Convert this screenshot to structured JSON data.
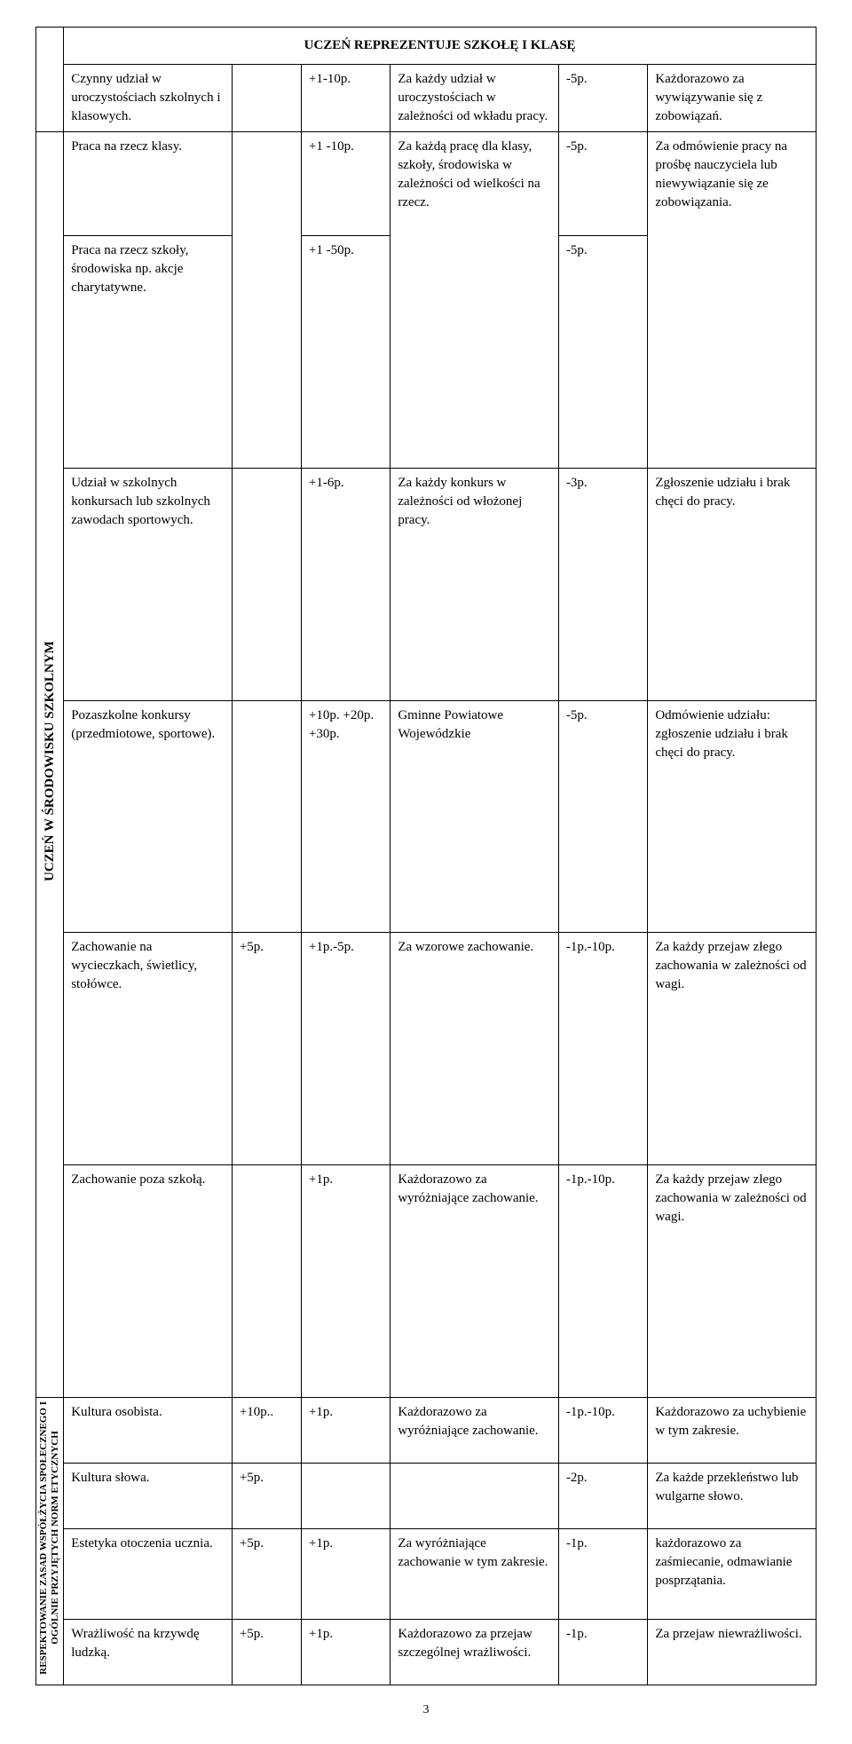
{
  "header": "UCZEŃ REPREZENTUJE SZKOŁĘ I KLASĘ",
  "sideLabel1": "UCZEŃ W ŚRODOWISKU SZKOLNYM",
  "sideLabel2a": "RESPEKTOWANIE ZASAD WSPÓŁŻYCIA SPOŁECZNEGO I",
  "sideLabel2b": "OGÓLNIE PRZYJĘTYCH NORM ETYCZNYCH",
  "pageNumber": "3",
  "rows": {
    "r1": {
      "a": "Czynny udział w uroczystościach szkolnych i klasowych.",
      "b": "",
      "c": "+1-10p.",
      "d": "Za każdy udział w uroczystościach w zależności od wkładu pracy.",
      "e": "-5p.",
      "f": "Każdorazowo za wywiązywanie się z zobowiązań."
    },
    "r2": {
      "a": "Praca na rzecz klasy.",
      "b": "",
      "c": "+1 -10p.",
      "d": "Za każdą pracę dla klasy, szkoły, środowiska w zależności od wielkości na rzecz.",
      "e": "-5p.",
      "f": "Za odmówienie pracy na prośbę nauczyciela lub niewywiązanie się ze zobowiązania."
    },
    "r3": {
      "a": "Praca na rzecz szkoły, środowiska np. akcje charytatywne.",
      "b": "",
      "c": "+1 -50p.",
      "e": "-5p."
    },
    "r4": {
      "a": "Udział w szkolnych konkursach lub szkolnych zawodach sportowych.",
      "b": "",
      "c": "+1-6p.",
      "d": "Za każdy konkurs w zależności od włożonej pracy.",
      "e": "-3p.",
      "f": "Zgłoszenie udziału i brak chęci do pracy."
    },
    "r5": {
      "a": "Pozaszkolne konkursy (przedmiotowe, sportowe).",
      "b": "",
      "c": "+10p. +20p. +30p.",
      "d": "Gminne Powiatowe Wojewódzkie",
      "e": "-5p.",
      "f": "Odmówienie udziału: zgłoszenie udziału i brak chęci do pracy."
    },
    "r6": {
      "a": "Zachowanie na wycieczkach, świetlicy, stołówce.",
      "b": "+5p.",
      "c": "+1p.-5p.",
      "d": "Za wzorowe zachowanie.",
      "e": "-1p.-10p.",
      "f": "Za każdy przejaw złego zachowania w zależności od wagi."
    },
    "r7": {
      "a": "Zachowanie poza szkołą.",
      "b": "",
      "c": "+1p.",
      "d": "Każdorazowo za wyróżniające zachowanie.",
      "e": "-1p.-10p.",
      "f": "Za każdy przejaw złego zachowania w zależności od wagi."
    },
    "r8": {
      "a": "Kultura osobista.",
      "b": "+10p..",
      "c": "+1p.",
      "d": "Każdorazowo za wyróżniające zachowanie.",
      "e": "-1p.-10p.",
      "f": "Każdorazowo za uchybienie w tym zakresie."
    },
    "r9": {
      "a": "Kultura słowa.",
      "b": "+5p.",
      "c": "",
      "d": "",
      "e": "-2p.",
      "f": "Za każde przekleństwo lub wulgarne słowo."
    },
    "r10": {
      "a": "Estetyka otoczenia ucznia.",
      "b": "+5p.",
      "c": "+1p.",
      "d": "Za wyróżniające zachowanie w tym zakresie.",
      "e": "-1p.",
      "f": "każdorazowo za zaśmiecanie, odmawianie posprzątania."
    },
    "r11": {
      "a": "Wrażliwość na krzywdę ludzką.",
      "b": "+5p.",
      "c": "+1p.",
      "d": "Każdorazowo za przejaw szczególnej wrażliwości.",
      "e": "-1p.",
      "f": "Za przejaw niewrażliwości."
    }
  }
}
